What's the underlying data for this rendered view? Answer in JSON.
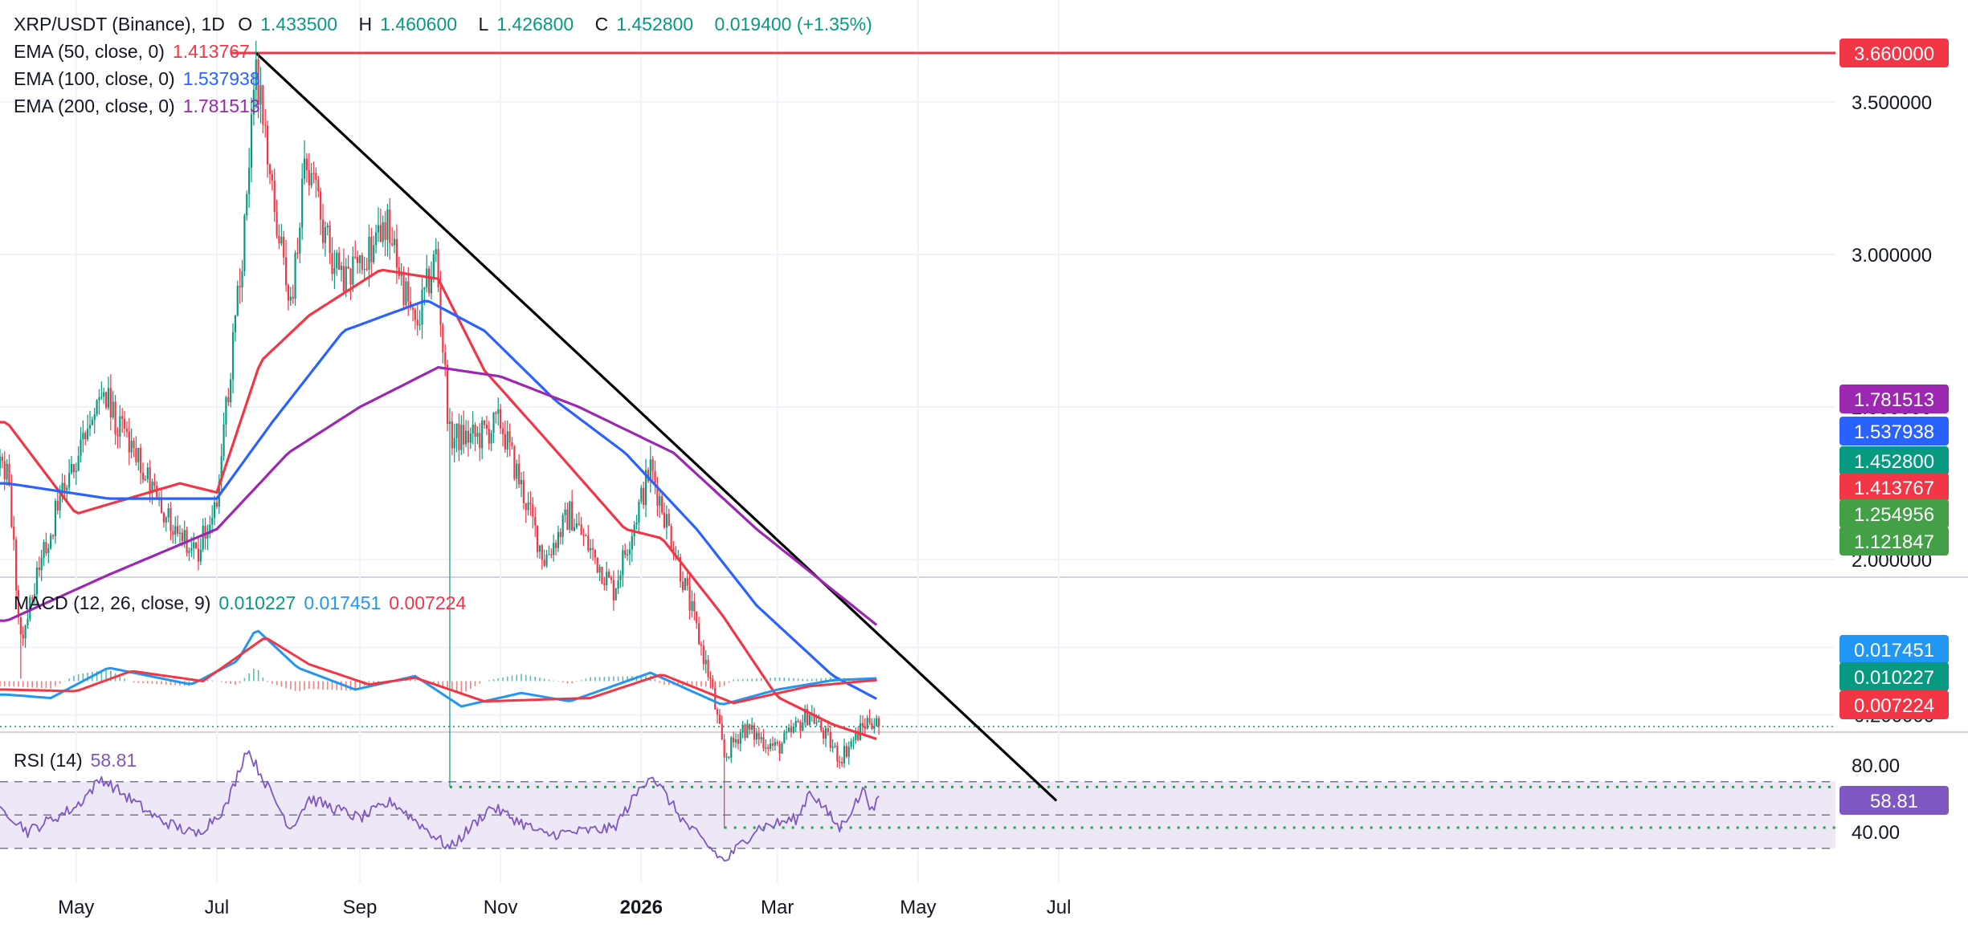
{
  "header": {
    "symbol": "XRP/USDT (Binance), 1D",
    "o_label": "O",
    "o": "1.433500",
    "h_label": "H",
    "h": "1.460600",
    "l_label": "L",
    "l": "1.426800",
    "c_label": "C",
    "c": "1.452800",
    "change": "0.019400 (+1.35%)"
  },
  "indicators": {
    "ema50": {
      "label": "EMA (50, close, 0)",
      "value": "1.413767",
      "color": "#f23645"
    },
    "ema100": {
      "label": "EMA (100, close, 0)",
      "value": "1.537938",
      "color": "#2962ff"
    },
    "ema200": {
      "label": "EMA (200, close, 0)",
      "value": "1.781513",
      "color": "#9c27b0"
    },
    "macd": {
      "label": "MACD (12, 26, close, 9)",
      "hist": "0.010227",
      "macd": "0.017451",
      "signal": "0.007224"
    },
    "rsi": {
      "label": "RSI (14)",
      "value": "58.81"
    }
  },
  "colors": {
    "up": "#089981",
    "down": "#f23645",
    "trendline": "#000000",
    "resistance": "#f23645",
    "support": "#22a447",
    "ema50": "#f23645",
    "ema100": "#2962ff",
    "ema200": "#9c27b0",
    "macd_line": "#2196f3",
    "signal_line": "#f23645",
    "rsi_line": "#7e57c2",
    "rsi_band": "#ede7f6"
  },
  "chart_data": [
    {
      "type": "candlestick",
      "title": "XRP/USDT (Binance), 1D",
      "x_ticks": [
        "May",
        "Jul",
        "Sep",
        "Nov",
        "2026",
        "Mar",
        "May",
        "Jul"
      ],
      "y_ticks": [
        "2.000000",
        "2.500000",
        "3.000000",
        "3.500000"
      ],
      "ylim": [
        0.95,
        3.75
      ],
      "scale": "linear",
      "price_path": [
        {
          "date": "2025-04-01",
          "value": 2.3
        },
        {
          "date": "2025-04-07",
          "value": 1.75
        },
        {
          "date": "2025-04-22",
          "value": 2.15
        },
        {
          "date": "2025-05-12",
          "value": 2.55
        },
        {
          "date": "2025-06-05",
          "value": 2.2
        },
        {
          "date": "2025-06-22",
          "value": 2.0
        },
        {
          "date": "2025-07-01",
          "value": 2.2
        },
        {
          "date": "2025-07-12",
          "value": 3.0
        },
        {
          "date": "2025-07-18",
          "value": 3.6
        },
        {
          "date": "2025-07-24",
          "value": 3.25
        },
        {
          "date": "2025-08-02",
          "value": 2.8
        },
        {
          "date": "2025-08-08",
          "value": 3.3
        },
        {
          "date": "2025-08-24",
          "value": 2.9
        },
        {
          "date": "2025-09-13",
          "value": 3.1
        },
        {
          "date": "2025-09-25",
          "value": 2.75
        },
        {
          "date": "2025-10-04",
          "value": 3.0
        },
        {
          "date": "2025-10-10",
          "value": 2.4
        },
        {
          "date": "2025-10-22",
          "value": 2.4
        },
        {
          "date": "2025-11-01",
          "value": 2.45
        },
        {
          "date": "2025-11-20",
          "value": 2.0
        },
        {
          "date": "2025-12-01",
          "value": 2.15
        },
        {
          "date": "2025-12-20",
          "value": 1.9
        },
        {
          "date": "2026-01-05",
          "value": 2.3
        },
        {
          "date": "2026-01-15",
          "value": 2.05
        },
        {
          "date": "2026-01-31",
          "value": 1.6
        },
        {
          "date": "2026-02-06",
          "value": 1.35
        },
        {
          "date": "2026-02-14",
          "value": 1.45
        },
        {
          "date": "2026-03-01",
          "value": 1.38
        },
        {
          "date": "2026-03-15",
          "value": 1.5
        },
        {
          "date": "2026-03-28",
          "value": 1.35
        },
        {
          "date": "2026-04-10",
          "value": 1.48
        },
        {
          "date": "2026-04-14",
          "value": 1.4528
        }
      ],
      "wicks": [
        {
          "date": "2025-04-07",
          "low": 1.61
        },
        {
          "date": "2025-10-10",
          "low": 1.255
        },
        {
          "date": "2026-02-06",
          "low": 1.12
        }
      ],
      "series": [
        {
          "name": "EMA (50, close, 0)",
          "last": 1.413767,
          "path": [
            {
              "date": "2025-04-01",
              "value": 2.45
            },
            {
              "date": "2025-05-01",
              "value": 2.15
            },
            {
              "date": "2025-06-15",
              "value": 2.25
            },
            {
              "date": "2025-07-01",
              "value": 2.22
            },
            {
              "date": "2025-07-20",
              "value": 2.65
            },
            {
              "date": "2025-08-10",
              "value": 2.8
            },
            {
              "date": "2025-09-10",
              "value": 2.95
            },
            {
              "date": "2025-10-05",
              "value": 2.92
            },
            {
              "date": "2025-10-25",
              "value": 2.62
            },
            {
              "date": "2025-11-20",
              "value": 2.4
            },
            {
              "date": "2025-12-25",
              "value": 2.1
            },
            {
              "date": "2026-01-10",
              "value": 2.07
            },
            {
              "date": "2026-02-05",
              "value": 1.82
            },
            {
              "date": "2026-03-01",
              "value": 1.55
            },
            {
              "date": "2026-03-25",
              "value": 1.46
            },
            {
              "date": "2026-04-14",
              "value": 1.41
            }
          ]
        },
        {
          "name": "EMA (100, close, 0)",
          "last": 1.537938,
          "path": [
            {
              "date": "2025-04-01",
              "value": 2.25
            },
            {
              "date": "2025-05-15",
              "value": 2.2
            },
            {
              "date": "2025-07-01",
              "value": 2.2
            },
            {
              "date": "2025-07-25",
              "value": 2.45
            },
            {
              "date": "2025-08-25",
              "value": 2.75
            },
            {
              "date": "2025-09-30",
              "value": 2.85
            },
            {
              "date": "2025-10-25",
              "value": 2.75
            },
            {
              "date": "2025-11-25",
              "value": 2.52
            },
            {
              "date": "2025-12-25",
              "value": 2.35
            },
            {
              "date": "2026-01-25",
              "value": 2.1
            },
            {
              "date": "2026-02-20",
              "value": 1.85
            },
            {
              "date": "2026-03-25",
              "value": 1.62
            },
            {
              "date": "2026-04-14",
              "value": 1.54
            }
          ]
        },
        {
          "name": "EMA (200, close, 0)",
          "last": 1.781513,
          "path": [
            {
              "date": "2025-04-01",
              "value": 1.8
            },
            {
              "date": "2025-05-15",
              "value": 1.95
            },
            {
              "date": "2025-07-01",
              "value": 2.1
            },
            {
              "date": "2025-08-01",
              "value": 2.35
            },
            {
              "date": "2025-09-01",
              "value": 2.5
            },
            {
              "date": "2025-10-05",
              "value": 2.63
            },
            {
              "date": "2025-11-01",
              "value": 2.6
            },
            {
              "date": "2025-12-05",
              "value": 2.5
            },
            {
              "date": "2026-01-15",
              "value": 2.35
            },
            {
              "date": "2026-02-20",
              "value": 2.1
            },
            {
              "date": "2026-04-14",
              "value": 1.78
            }
          ]
        }
      ],
      "levels": [
        {
          "name": "resistance",
          "value": 3.66,
          "label": "3.660000"
        },
        {
          "name": "support-1",
          "value": 1.254956,
          "label": "1.254956",
          "from": "2025-10-10"
        },
        {
          "name": "support-2",
          "value": 1.121847,
          "label": "1.121847",
          "from": "2026-02-06"
        }
      ],
      "trendline": [
        {
          "date": "2025-07-18",
          "value": 3.66
        },
        {
          "date": "2026-06-30",
          "value": 1.21
        }
      ],
      "current_price": {
        "value": 1.4528,
        "label": "1.452800"
      },
      "price_labels": [
        {
          "label": "3.660000",
          "value": 3.66
        },
        {
          "label": "1.781513",
          "value": 1.781513
        },
        {
          "label": "1.537938",
          "value": 1.537938
        },
        {
          "label": "1.452800",
          "value": 1.4528
        },
        {
          "label": "1.413767",
          "value": 1.413767
        },
        {
          "label": "1.254956",
          "value": 1.254956
        },
        {
          "label": "1.121847",
          "value": 1.121847
        }
      ]
    },
    {
      "type": "line",
      "title": "MACD (12, 26, close, 9)",
      "y_ticks": [
        "0.200000",
        "-0.200000"
      ],
      "ylim": [
        -0.2,
        0.2
      ],
      "series": [
        {
          "name": "MACD",
          "path": [
            {
              "date": "2025-04-01",
              "value": -0.08
            },
            {
              "date": "2025-04-20",
              "value": -0.1
            },
            {
              "date": "2025-05-15",
              "value": 0.08
            },
            {
              "date": "2025-06-20",
              "value": -0.02
            },
            {
              "date": "2025-07-10",
              "value": 0.12
            },
            {
              "date": "2025-07-18",
              "value": 0.31
            },
            {
              "date": "2025-08-05",
              "value": 0.08
            },
            {
              "date": "2025-08-30",
              "value": -0.05
            },
            {
              "date": "2025-09-25",
              "value": 0.03
            },
            {
              "date": "2025-10-15",
              "value": -0.15
            },
            {
              "date": "2025-11-10",
              "value": -0.07
            },
            {
              "date": "2025-12-01",
              "value": -0.12
            },
            {
              "date": "2026-01-05",
              "value": 0.05
            },
            {
              "date": "2026-02-05",
              "value": -0.14
            },
            {
              "date": "2026-03-01",
              "value": -0.05
            },
            {
              "date": "2026-03-25",
              "value": 0.005
            },
            {
              "date": "2026-04-14",
              "value": 0.017451
            }
          ]
        },
        {
          "name": "Signal",
          "path": [
            {
              "date": "2025-04-01",
              "value": -0.05
            },
            {
              "date": "2025-05-01",
              "value": -0.06
            },
            {
              "date": "2025-05-25",
              "value": 0.06
            },
            {
              "date": "2025-06-25",
              "value": 0.0
            },
            {
              "date": "2025-07-22",
              "value": 0.26
            },
            {
              "date": "2025-08-10",
              "value": 0.1
            },
            {
              "date": "2025-09-05",
              "value": -0.02
            },
            {
              "date": "2025-09-25",
              "value": 0.02
            },
            {
              "date": "2025-10-25",
              "value": -0.12
            },
            {
              "date": "2025-12-10",
              "value": -0.1
            },
            {
              "date": "2026-01-10",
              "value": 0.04
            },
            {
              "date": "2026-02-10",
              "value": -0.13
            },
            {
              "date": "2026-03-15",
              "value": -0.03
            },
            {
              "date": "2026-04-14",
              "value": 0.007224
            }
          ]
        }
      ],
      "histogram_last": 0.010227,
      "price_labels": [
        {
          "label": "0.017451",
          "value": 0.017451
        },
        {
          "label": "0.010227",
          "value": 0.010227
        },
        {
          "label": "0.007224",
          "value": 0.007224
        }
      ]
    },
    {
      "type": "line",
      "title": "RSI (14)",
      "y_ticks": [
        "80.00",
        "40.00"
      ],
      "ylim": [
        20,
        95
      ],
      "band": [
        30,
        70
      ],
      "middle": 50,
      "series": [
        {
          "name": "RSI",
          "path": [
            {
              "date": "2025-04-01",
              "value": 52
            },
            {
              "date": "2025-04-10",
              "value": 40
            },
            {
              "date": "2025-05-01",
              "value": 55
            },
            {
              "date": "2025-05-12",
              "value": 72
            },
            {
              "date": "2025-06-05",
              "value": 48
            },
            {
              "date": "2025-06-22",
              "value": 38
            },
            {
              "date": "2025-07-05",
              "value": 55
            },
            {
              "date": "2025-07-14",
              "value": 90
            },
            {
              "date": "2025-07-25",
              "value": 62
            },
            {
              "date": "2025-08-02",
              "value": 42
            },
            {
              "date": "2025-08-10",
              "value": 60
            },
            {
              "date": "2025-09-01",
              "value": 48
            },
            {
              "date": "2025-09-15",
              "value": 58
            },
            {
              "date": "2025-10-10",
              "value": 30
            },
            {
              "date": "2025-10-28",
              "value": 55
            },
            {
              "date": "2025-11-20",
              "value": 38
            },
            {
              "date": "2025-12-20",
              "value": 42
            },
            {
              "date": "2026-01-05",
              "value": 75
            },
            {
              "date": "2026-01-20",
              "value": 45
            },
            {
              "date": "2026-02-06",
              "value": 22
            },
            {
              "date": "2026-02-20",
              "value": 42
            },
            {
              "date": "2026-03-10",
              "value": 48
            },
            {
              "date": "2026-03-15",
              "value": 65
            },
            {
              "date": "2026-03-28",
              "value": 42
            },
            {
              "date": "2026-04-08",
              "value": 66
            },
            {
              "date": "2026-04-11",
              "value": 52
            },
            {
              "date": "2026-04-14",
              "value": 58.81
            }
          ]
        }
      ],
      "price_labels": [
        {
          "label": "58.81",
          "value": 58.81
        }
      ]
    }
  ]
}
